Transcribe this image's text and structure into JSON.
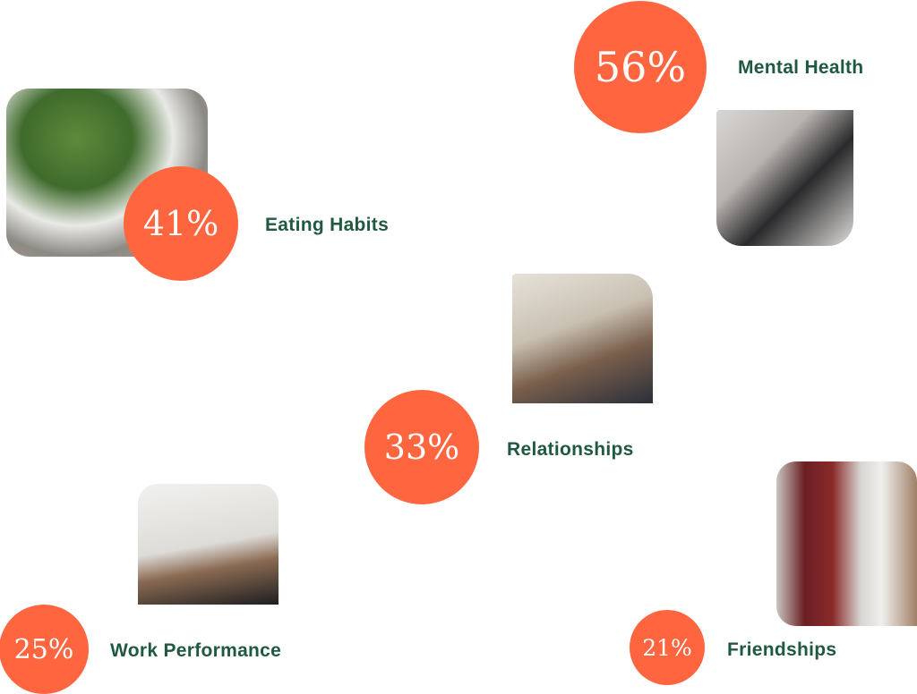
{
  "accent_color": "#FF6640",
  "label_color": "#1F5A40",
  "items": [
    {
      "percent": "56%",
      "label": "Mental Health",
      "photo": "hands-holding-photo"
    },
    {
      "percent": "41%",
      "label": "Eating Habits",
      "photo": "salad-bowl-photo"
    },
    {
      "percent": "33%",
      "label": "Relationships",
      "photo": "couple-with-dog-photo"
    },
    {
      "percent": "25%",
      "label": "Work Performance",
      "photo": "woman-at-desk-photo"
    },
    {
      "percent": "21%",
      "label": "Friendships",
      "photo": "friends-walking-photo"
    }
  ]
}
